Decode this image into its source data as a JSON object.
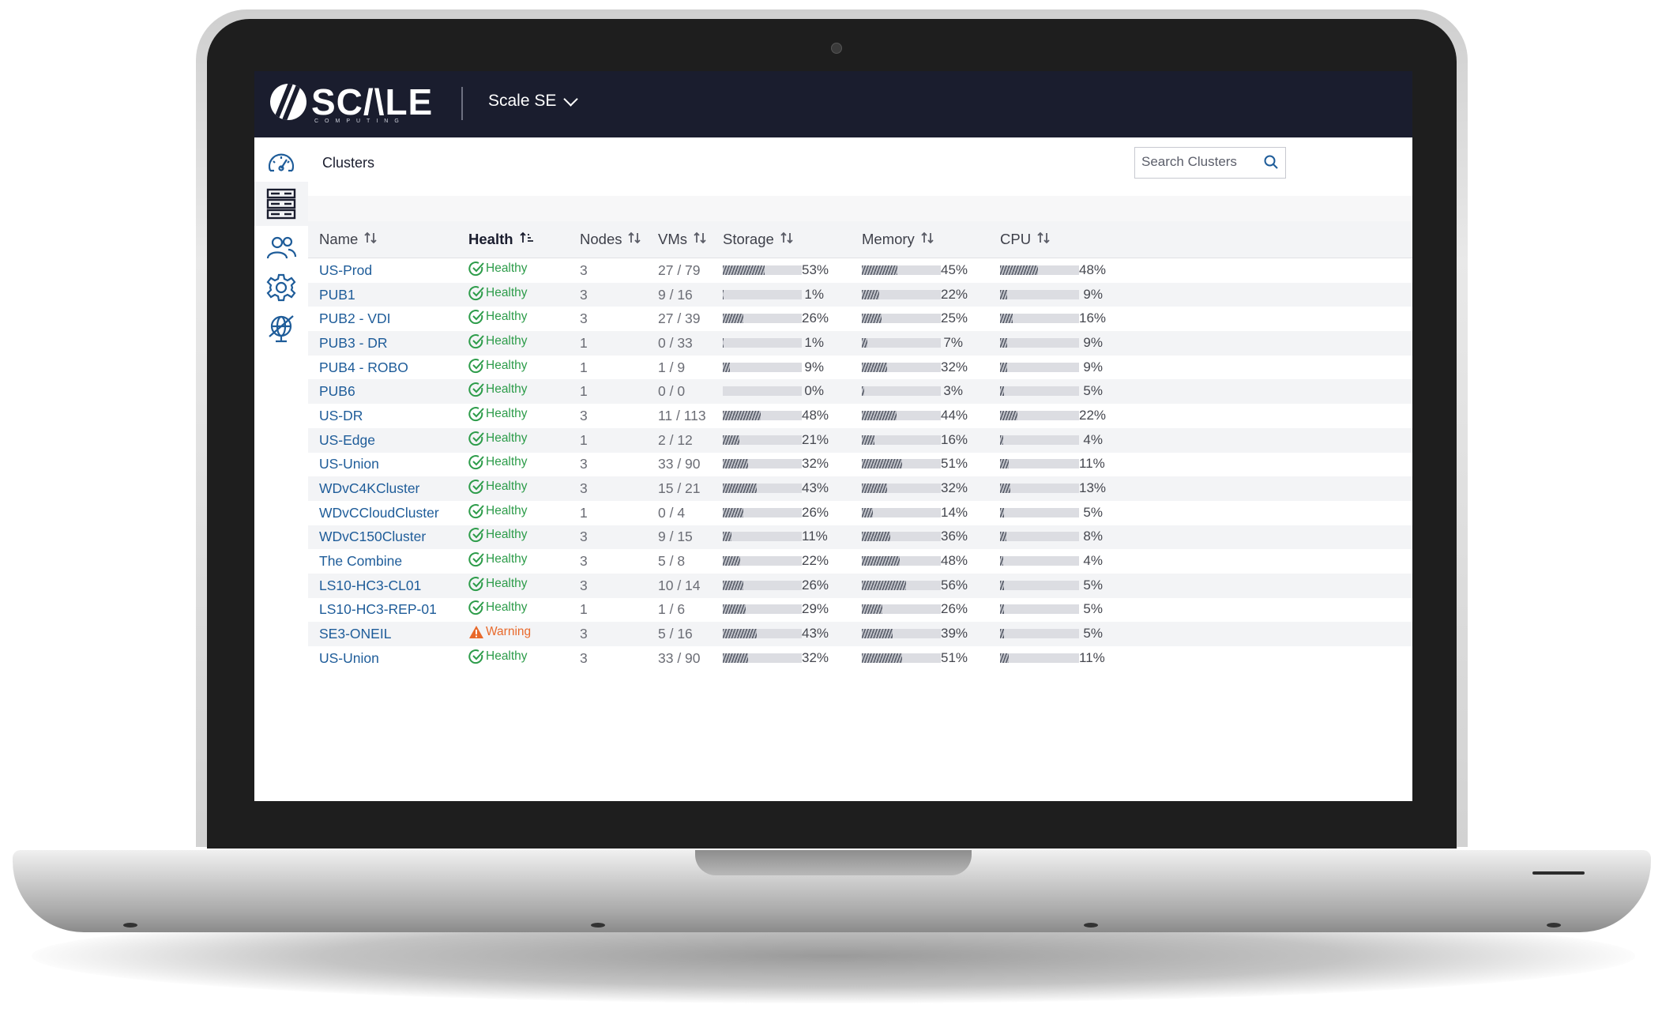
{
  "header": {
    "logo_text": "SC/\\LE",
    "logo_sub": "COMPUTING",
    "org_name": "Scale SE"
  },
  "sidebar": {
    "items": [
      {
        "icon": "gauge-icon",
        "active": false
      },
      {
        "icon": "cluster-servers-icon",
        "active": true
      },
      {
        "icon": "users-icon",
        "active": false
      },
      {
        "icon": "gear-icon",
        "active": false
      },
      {
        "icon": "globe-off-icon",
        "active": false
      }
    ]
  },
  "page": {
    "title": "Clusters",
    "search_placeholder": "Search Clusters"
  },
  "table": {
    "columns": [
      "Name",
      "Health",
      "Nodes",
      "VMs",
      "Storage",
      "Memory",
      "CPU"
    ],
    "rows": [
      {
        "name": "US-Prod",
        "health": "Healthy",
        "nodes": "3",
        "vms": "27 / 79",
        "storage": "53%",
        "memory": "45%",
        "cpu": "48%"
      },
      {
        "name": "PUB1",
        "health": "Healthy",
        "nodes": "3",
        "vms": "9 / 16",
        "storage": "1%",
        "memory": "22%",
        "cpu": "9%"
      },
      {
        "name": "PUB2 - VDI",
        "health": "Healthy",
        "nodes": "3",
        "vms": "27 / 39",
        "storage": "26%",
        "memory": "25%",
        "cpu": "16%"
      },
      {
        "name": "PUB3 - DR",
        "health": "Healthy",
        "nodes": "1",
        "vms": "0 / 33",
        "storage": "1%",
        "memory": "7%",
        "cpu": "9%"
      },
      {
        "name": "PUB4 - ROBO",
        "health": "Healthy",
        "nodes": "1",
        "vms": "1 / 9",
        "storage": "9%",
        "memory": "32%",
        "cpu": "9%"
      },
      {
        "name": "PUB6",
        "health": "Healthy",
        "nodes": "1",
        "vms": "0 / 0",
        "storage": "0%",
        "memory": "3%",
        "cpu": "5%"
      },
      {
        "name": "US-DR",
        "health": "Healthy",
        "nodes": "3",
        "vms": "11 / 113",
        "storage": "48%",
        "memory": "44%",
        "cpu": "22%"
      },
      {
        "name": "US-Edge",
        "health": "Healthy",
        "nodes": "1",
        "vms": "2 / 12",
        "storage": "21%",
        "memory": "16%",
        "cpu": "4%"
      },
      {
        "name": "US-Union",
        "health": "Healthy",
        "nodes": "3",
        "vms": "33 / 90",
        "storage": "32%",
        "memory": "51%",
        "cpu": "11%"
      },
      {
        "name": "WDvC4KCluster",
        "health": "Healthy",
        "nodes": "3",
        "vms": "15 / 21",
        "storage": "43%",
        "memory": "32%",
        "cpu": "13%"
      },
      {
        "name": "WDvCCloudCluster",
        "health": "Healthy",
        "nodes": "1",
        "vms": "0 / 4",
        "storage": "26%",
        "memory": "14%",
        "cpu": "5%"
      },
      {
        "name": "WDvC150Cluster",
        "health": "Healthy",
        "nodes": "3",
        "vms": "9 / 15",
        "storage": "11%",
        "memory": "36%",
        "cpu": "8%"
      },
      {
        "name": "The Combine",
        "health": "Healthy",
        "nodes": "3",
        "vms": "5 / 8",
        "storage": "22%",
        "memory": "48%",
        "cpu": "4%"
      },
      {
        "name": "LS10-HC3-CL01",
        "health": "Healthy",
        "nodes": "3",
        "vms": "10 / 14",
        "storage": "26%",
        "memory": "56%",
        "cpu": "5%"
      },
      {
        "name": "LS10-HC3-REP-01",
        "health": "Healthy",
        "nodes": "1",
        "vms": "1 / 6",
        "storage": "29%",
        "memory": "26%",
        "cpu": "5%"
      },
      {
        "name": "SE3-ONEIL",
        "health": "Warning",
        "nodes": "3",
        "vms": "5 / 16",
        "storage": "43%",
        "memory": "39%",
        "cpu": "5%"
      },
      {
        "name": "US-Union",
        "health": "Healthy",
        "nodes": "3",
        "vms": "33 / 90",
        "storage": "32%",
        "memory": "51%",
        "cpu": "11%"
      }
    ]
  },
  "colors": {
    "topbar": "#1a1d2e",
    "link": "#1e5c99",
    "healthy": "#2d9c4a",
    "warning": "#e8692b"
  }
}
